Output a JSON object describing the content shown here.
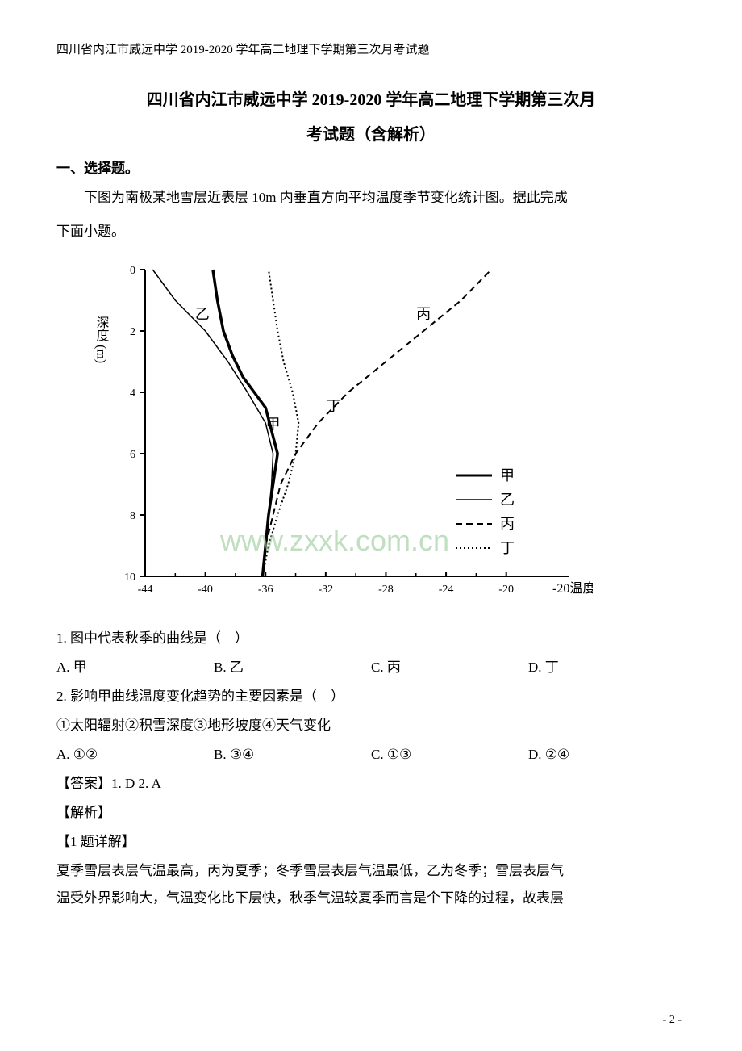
{
  "header": "四川省内江市威远中学 2019-2020 学年高二地理下学期第三次月考试题",
  "title_line1": "四川省内江市威远中学 2019-2020 学年高二地理下学期第三次月",
  "title_line2": "考试题（含解析）",
  "section_heading": "一、选择题。",
  "intro_line1": "下图为南极某地雪层近表层 10m 内垂直方向平均温度季节变化统计图。据此完成",
  "intro_line2": "下面小题。",
  "chart": {
    "type": "line",
    "y_label": "深度 (m)",
    "x_label": "温度 (℃)",
    "x_range": [
      -44,
      -18
    ],
    "y_range": [
      0,
      10
    ],
    "x_ticks": [
      -44,
      -40,
      -36,
      -32,
      -28,
      -24,
      -20
    ],
    "y_ticks": [
      0,
      2,
      4,
      6,
      8,
      10
    ],
    "background_color": "#ffffff",
    "axis_color": "#000000",
    "text_color": "#000000",
    "axis_fontsize": 14,
    "label_fontsize": 16,
    "legend": [
      {
        "name": "甲",
        "style": "solid-thick",
        "color": "#000000",
        "width": 3
      },
      {
        "name": "乙",
        "style": "solid-thin",
        "color": "#000000",
        "width": 1.5
      },
      {
        "name": "丙",
        "style": "dashed",
        "color": "#000000",
        "width": 2
      },
      {
        "name": "丁",
        "style": "dotted",
        "color": "#000000",
        "width": 2
      }
    ],
    "series": {
      "jia": {
        "name": "甲",
        "label_pos": [
          -35.5,
          5.2
        ],
        "points": [
          [
            -36.2,
            10
          ],
          [
            -36.0,
            9
          ],
          [
            -35.8,
            8
          ],
          [
            -35.5,
            7
          ],
          [
            -35.2,
            6
          ],
          [
            -36.0,
            4.5
          ],
          [
            -37.5,
            3.5
          ],
          [
            -38.2,
            2.8
          ],
          [
            -38.8,
            2
          ],
          [
            -39.2,
            1
          ],
          [
            -39.5,
            0
          ]
        ]
      },
      "yi": {
        "name": "乙",
        "label_pos": [
          -40.2,
          1.6
        ],
        "points": [
          [
            -36.2,
            10
          ],
          [
            -36.0,
            9
          ],
          [
            -35.8,
            8
          ],
          [
            -35.6,
            7
          ],
          [
            -35.5,
            6
          ],
          [
            -36.0,
            5
          ],
          [
            -37.2,
            4
          ],
          [
            -38.5,
            3
          ],
          [
            -40.0,
            2
          ],
          [
            -42.0,
            1
          ],
          [
            -43.5,
            0
          ]
        ]
      },
      "bing": {
        "name": "丙",
        "label_pos": [
          -25.5,
          1.6
        ],
        "points": [
          [
            -36.2,
            10
          ],
          [
            -36.0,
            9
          ],
          [
            -35.5,
            8
          ],
          [
            -35.0,
            7
          ],
          [
            -34.0,
            6
          ],
          [
            -32.5,
            5
          ],
          [
            -30.5,
            4
          ],
          [
            -28.0,
            3
          ],
          [
            -25.5,
            2
          ],
          [
            -23.0,
            1
          ],
          [
            -21.0,
            0
          ]
        ]
      },
      "ding": {
        "name": "丁",
        "label_pos": [
          -31.5,
          4.6
        ],
        "points": [
          [
            -36.2,
            10
          ],
          [
            -35.8,
            9
          ],
          [
            -35.2,
            8
          ],
          [
            -34.5,
            7
          ],
          [
            -34.0,
            6
          ],
          [
            -33.8,
            5
          ],
          [
            -34.2,
            4
          ],
          [
            -34.8,
            3
          ],
          [
            -35.2,
            2
          ],
          [
            -35.5,
            1
          ],
          [
            -35.8,
            0
          ]
        ]
      }
    },
    "watermark_text": "www.zxxk.com.cn"
  },
  "q1": {
    "stem": "1. 图中代表秋季的曲线是（　）",
    "options": {
      "A": "A. 甲",
      "B": "B. 乙",
      "C": "C. 丙",
      "D": "D. 丁"
    }
  },
  "q2": {
    "stem": "2. 影响甲曲线温度变化趋势的主要因素是（　）",
    "sub": "①太阳辐射②积雪深度③地形坡度④天气变化",
    "options": {
      "A": "A. ①②",
      "B": "B. ③④",
      "C": "C. ①③",
      "D": "D. ②④"
    }
  },
  "answer": "【答案】1. D    2. A",
  "analysis_label": "【解析】",
  "q1_detail_label": "【1 题详解】",
  "q1_detail_text1": "夏季雪层表层气温最高，丙为夏季；冬季雪层表层气温最低，乙为冬季；雪层表层气",
  "q1_detail_text2": "温受外界影响大，气温变化比下层快，秋季气温较夏季而言是个下降的过程，故表层",
  "page_number": "- 2 -"
}
